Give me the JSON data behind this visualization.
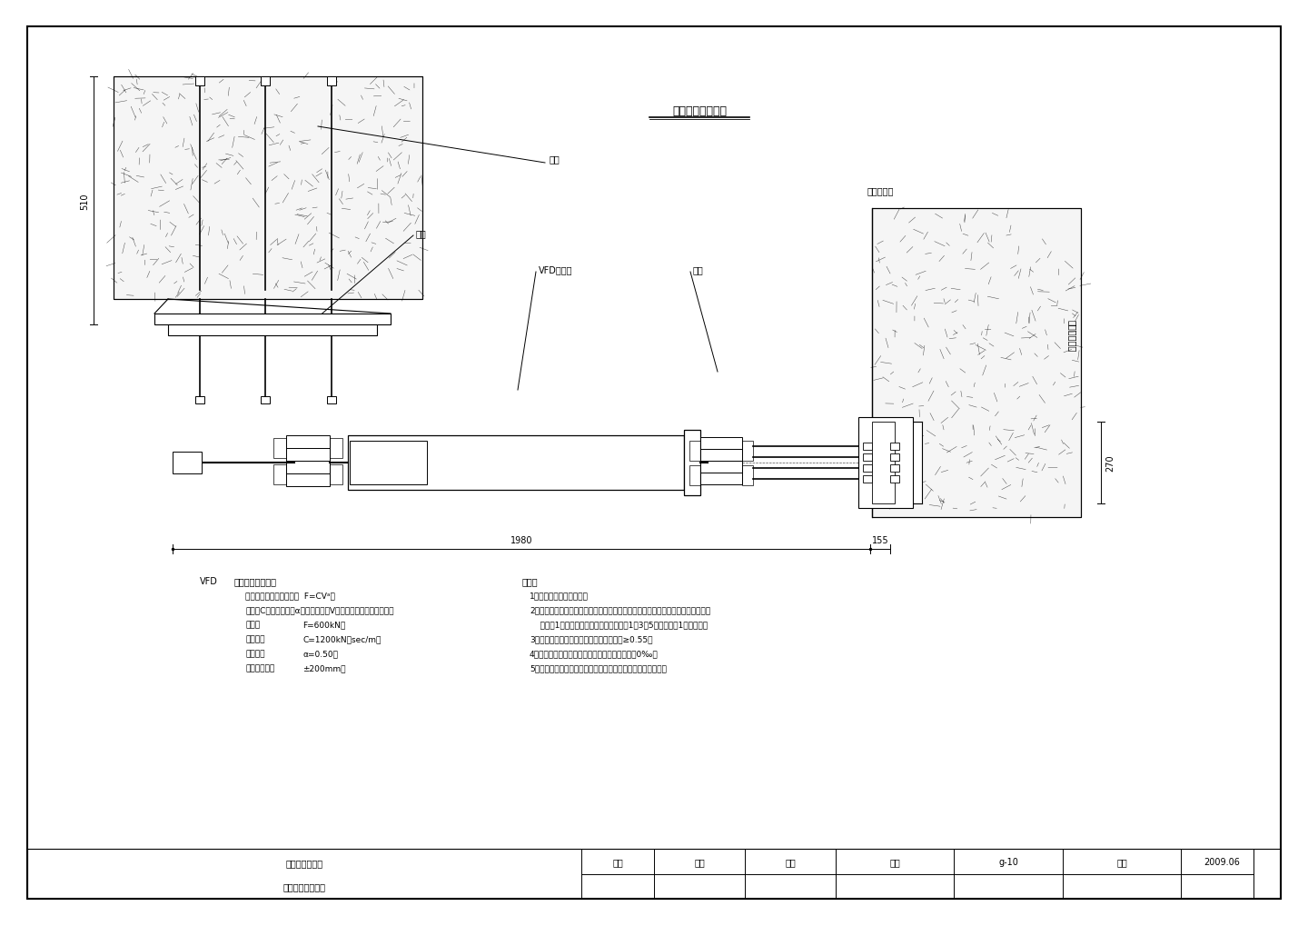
{
  "title": "阻尼器安装示意图",
  "background": "#ffffff",
  "labels": {
    "jiati": "架体",
    "sukuai_left": "锁块",
    "vfd": "VFD阻尼器",
    "sukuai_right": "锁块",
    "qiaodun": "桥墩或桥台",
    "qiaotai": "桥台盖梁顶面"
  },
  "vfd_label": "VFD",
  "vfd_params_title": "阻尼器技术参数：",
  "vfd_params": [
    [
      "阻尼力与速度的函数关系  F=CVᵃ；"
    ],
    [
      "其中：C为阻尼系数，α为阻尼指数，V为阻尼器活塞的运动速度；"
    ],
    [
      "阻尼力",
      "F=600kN；"
    ],
    [
      "阻尼系数",
      "C=1200kN（sec/m）"
    ],
    [
      "阻尼指数",
      "α=0.50；"
    ],
    [
      "额定最大行程",
      "±200mm。"
    ]
  ],
  "notes_title": "附注：",
  "notes": [
    "1、本图尺寸均以厘米计。",
    "2、本阻尼器设置在桥梁墩台伸缩缝处，具体设置在：桥墩盖梁与主梁间，桥墩两侧各设",
    "    置1个阻尼器；在桥台盖梁与主梁间1、3、5号架各设置1个阻尼器。",
    "3、工地高强度螺栓连接摩察面位摩察系数≥0.55。",
    "4、阻尼器安装应保证水平，最大倾斜角不得大于0‰。",
    "5、阻尼器锁块、螺栓孔及位置根据最终定货的产品核实确定。"
  ],
  "title_project": "鹤大桥（右幅）",
  "title_drawing": "阻尼器安装示意图",
  "title_design": "设计",
  "title_review": "复核",
  "title_check": "审核",
  "title_no_label": "图号",
  "title_no_val": "g-10",
  "title_date_label": "日期",
  "title_date_val": "2009.06",
  "dim_510": "510",
  "dim_270": "270",
  "dim_1980": "1980",
  "dim_155": "155"
}
